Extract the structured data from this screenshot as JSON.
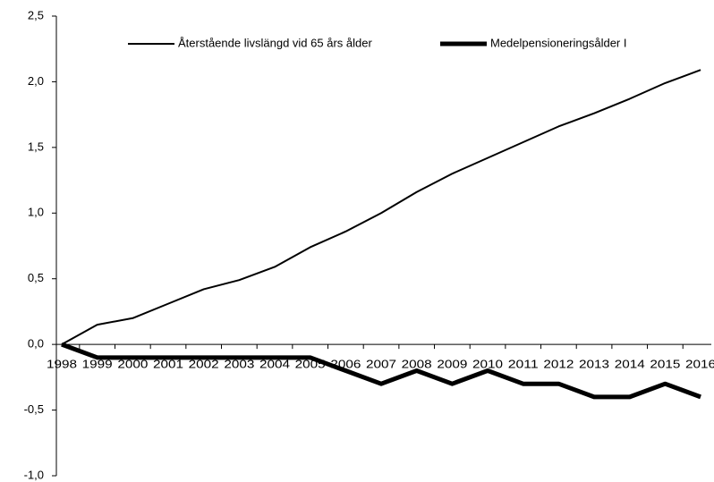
{
  "chart_data": {
    "type": "line",
    "categories": [
      "1998",
      "1999",
      "2000",
      "2001",
      "2002",
      "2003",
      "2004",
      "2005",
      "2006",
      "2007",
      "2008",
      "2009",
      "2010",
      "2011",
      "2012",
      "2013",
      "2014",
      "2015",
      "2016"
    ],
    "series": [
      {
        "name": "Återstående livslängd vid 65 års ålder",
        "color": "#000000",
        "width": 2,
        "values": [
          0,
          0.15,
          0.2,
          0.31,
          0.42,
          0.49,
          0.59,
          0.74,
          0.86,
          1.0,
          1.16,
          1.3,
          1.42,
          1.54,
          1.66,
          1.76,
          1.87,
          1.99,
          2.09
        ]
      },
      {
        "name": "Medelpensioneringsålder I",
        "color": "#000000",
        "width": 5,
        "values": [
          0,
          -0.1,
          -0.1,
          -0.1,
          -0.1,
          -0.1,
          -0.1,
          -0.1,
          -0.2,
          -0.3,
          -0.2,
          -0.3,
          -0.2,
          -0.3,
          -0.3,
          -0.4,
          -0.4,
          -0.3,
          -0.4
        ]
      }
    ],
    "ylim": [
      -1.0,
      2.5
    ],
    "yticks": [
      {
        "value": -1.0,
        "label": "-1,0"
      },
      {
        "value": -0.5,
        "label": "-0,5"
      },
      {
        "value": 0,
        "label": "0,0"
      },
      {
        "value": 0.5,
        "label": "0,5"
      },
      {
        "value": 1.0,
        "label": "1,0"
      },
      {
        "value": 1.5,
        "label": "1,5"
      },
      {
        "value": 2.0,
        "label": "2,0"
      },
      {
        "value": 2.5,
        "label": "2,5"
      }
    ],
    "legend": "top"
  }
}
